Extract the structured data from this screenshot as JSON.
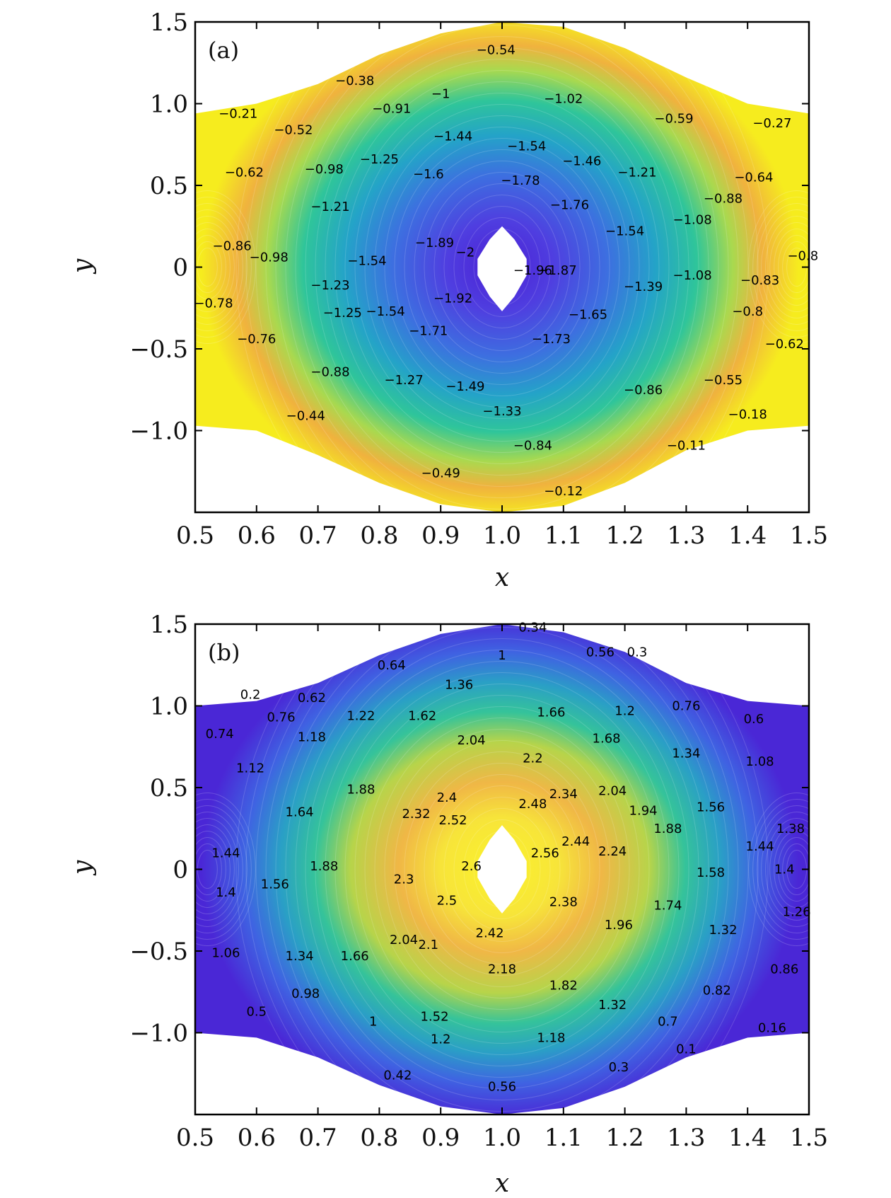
{
  "chart_data": [
    {
      "type": "contour",
      "panel_label": "(a)",
      "xlabel": "x",
      "ylabel": "y",
      "xlim": [
        0.5,
        1.5
      ],
      "ylim": [
        -1.5,
        1.5
      ],
      "xticks": [
        "0.5",
        "0.6",
        "0.7",
        "0.8",
        "0.9",
        "1.0",
        "1.1",
        "1.2",
        "1.3",
        "1.4",
        "1.5"
      ],
      "yticks": [
        "1.5",
        "1.0",
        "0.5",
        "0",
        "−0.5",
        "−1.0"
      ],
      "colormap": "viridis-like (purple center to yellow edge)",
      "domain_boundary": {
        "top": [
          [
            0.5,
            0.94
          ],
          [
            0.6,
            1.0
          ],
          [
            0.7,
            1.12
          ],
          [
            0.8,
            1.3
          ],
          [
            0.9,
            1.43
          ],
          [
            1.0,
            1.5
          ],
          [
            1.1,
            1.47
          ],
          [
            1.2,
            1.34
          ],
          [
            1.3,
            1.16
          ],
          [
            1.4,
            1.0
          ],
          [
            1.5,
            0.94
          ]
        ],
        "bottom": [
          [
            0.5,
            -0.97
          ],
          [
            0.6,
            -1.0
          ],
          [
            0.7,
            -1.15
          ],
          [
            0.8,
            -1.32
          ],
          [
            0.9,
            -1.45
          ],
          [
            1.0,
            -1.5
          ],
          [
            1.1,
            -1.46
          ],
          [
            1.2,
            -1.32
          ],
          [
            1.3,
            -1.12
          ],
          [
            1.4,
            -1.0
          ],
          [
            1.5,
            -0.97
          ]
        ]
      },
      "hole": [
        [
          1.0,
          0.25
        ],
        [
          1.02,
          0.17
        ],
        [
          1.04,
          0.05
        ],
        [
          1.04,
          -0.05
        ],
        [
          1.02,
          -0.18
        ],
        [
          1.0,
          -0.27
        ],
        [
          0.98,
          -0.18
        ],
        [
          0.96,
          -0.05
        ],
        [
          0.96,
          0.05
        ],
        [
          0.98,
          0.17
        ]
      ],
      "center_value": -2.0,
      "boundary_value": -0.12,
      "contour_labels": [
        {
          "text": "−0.54",
          "x": 0.99,
          "y": 1.33
        },
        {
          "text": "−0.38",
          "x": 0.76,
          "y": 1.14
        },
        {
          "text": "−0.21",
          "x": 0.57,
          "y": 0.94
        },
        {
          "text": "−0.52",
          "x": 0.66,
          "y": 0.84
        },
        {
          "text": "−0.91",
          "x": 0.82,
          "y": 0.97
        },
        {
          "text": "−1",
          "x": 0.9,
          "y": 1.06
        },
        {
          "text": "−1.02",
          "x": 1.1,
          "y": 1.03
        },
        {
          "text": "−0.59",
          "x": 1.28,
          "y": 0.91
        },
        {
          "text": "−0.27",
          "x": 1.44,
          "y": 0.88
        },
        {
          "text": "−1.44",
          "x": 0.92,
          "y": 0.8
        },
        {
          "text": "−1.54",
          "x": 1.04,
          "y": 0.74
        },
        {
          "text": "−1.46",
          "x": 1.13,
          "y": 0.65
        },
        {
          "text": "−1.21",
          "x": 1.22,
          "y": 0.58
        },
        {
          "text": "−0.62",
          "x": 0.58,
          "y": 0.58
        },
        {
          "text": "−0.98",
          "x": 0.71,
          "y": 0.6
        },
        {
          "text": "−1.25",
          "x": 0.8,
          "y": 0.66
        },
        {
          "text": "−1.6",
          "x": 0.88,
          "y": 0.57
        },
        {
          "text": "−1.78",
          "x": 1.03,
          "y": 0.53
        },
        {
          "text": "−0.64",
          "x": 1.41,
          "y": 0.55
        },
        {
          "text": "−1.76",
          "x": 1.11,
          "y": 0.38
        },
        {
          "text": "−0.88",
          "x": 1.36,
          "y": 0.42
        },
        {
          "text": "−1.08",
          "x": 1.31,
          "y": 0.29
        },
        {
          "text": "−1.21",
          "x": 0.72,
          "y": 0.37
        },
        {
          "text": "−1.54",
          "x": 1.2,
          "y": 0.22
        },
        {
          "text": "−0.86",
          "x": 0.56,
          "y": 0.13
        },
        {
          "text": "−0.98",
          "x": 0.62,
          "y": 0.06
        },
        {
          "text": "−1.54",
          "x": 0.78,
          "y": 0.04
        },
        {
          "text": "−1.89",
          "x": 0.89,
          "y": 0.15
        },
        {
          "text": "−2",
          "x": 0.94,
          "y": 0.09
        },
        {
          "text": "−1.96",
          "x": 1.05,
          "y": -0.02
        },
        {
          "text": "−1.87",
          "x": 1.09,
          "y": -0.02
        },
        {
          "text": "−1.39",
          "x": 1.23,
          "y": -0.12
        },
        {
          "text": "−1.08",
          "x": 1.31,
          "y": -0.05
        },
        {
          "text": "−0.8",
          "x": 1.49,
          "y": 0.07
        },
        {
          "text": "−0.83",
          "x": 1.42,
          "y": -0.08
        },
        {
          "text": "−1.23",
          "x": 0.72,
          "y": -0.11
        },
        {
          "text": "−1.25",
          "x": 0.74,
          "y": -0.28
        },
        {
          "text": "−1.92",
          "x": 0.92,
          "y": -0.19
        },
        {
          "text": "−0.78",
          "x": 0.53,
          "y": -0.22
        },
        {
          "text": "−0.8",
          "x": 1.4,
          "y": -0.27
        },
        {
          "text": "−1.54",
          "x": 0.81,
          "y": -0.27
        },
        {
          "text": "−1.65",
          "x": 1.14,
          "y": -0.29
        },
        {
          "text": "−0.76",
          "x": 0.6,
          "y": -0.44
        },
        {
          "text": "−1.71",
          "x": 0.88,
          "y": -0.39
        },
        {
          "text": "−1.73",
          "x": 1.08,
          "y": -0.44
        },
        {
          "text": "−0.62",
          "x": 1.46,
          "y": -0.47
        },
        {
          "text": "−0.88",
          "x": 0.72,
          "y": -0.64
        },
        {
          "text": "−1.27",
          "x": 0.84,
          "y": -0.69
        },
        {
          "text": "−1.49",
          "x": 0.94,
          "y": -0.73
        },
        {
          "text": "−0.86",
          "x": 1.23,
          "y": -0.75
        },
        {
          "text": "−0.55",
          "x": 1.36,
          "y": -0.69
        },
        {
          "text": "−1.33",
          "x": 1.0,
          "y": -0.88
        },
        {
          "text": "−0.44",
          "x": 0.68,
          "y": -0.91
        },
        {
          "text": "−0.18",
          "x": 1.4,
          "y": -0.9
        },
        {
          "text": "−0.84",
          "x": 1.05,
          "y": -1.09
        },
        {
          "text": "−0.11",
          "x": 1.3,
          "y": -1.09
        },
        {
          "text": "−0.49",
          "x": 0.9,
          "y": -1.26
        },
        {
          "text": "−0.12",
          "x": 1.1,
          "y": -1.37
        }
      ]
    },
    {
      "type": "contour",
      "panel_label": "(b)",
      "xlabel": "x",
      "ylabel": "y",
      "xlim": [
        0.5,
        1.5
      ],
      "ylim": [
        -1.5,
        1.5
      ],
      "xticks": [
        "0.5",
        "0.6",
        "0.7",
        "0.8",
        "0.9",
        "1.0",
        "1.1",
        "1.2",
        "1.3",
        "1.4",
        "1.5"
      ],
      "yticks": [
        "1.5",
        "1.0",
        "0.5",
        "0",
        "−0.5",
        "−1.0"
      ],
      "colormap": "viridis-like (yellow center to purple edge)",
      "domain_boundary": {
        "top": [
          [
            0.5,
            1.0
          ],
          [
            0.6,
            1.03
          ],
          [
            0.7,
            1.14
          ],
          [
            0.8,
            1.31
          ],
          [
            0.9,
            1.44
          ],
          [
            1.0,
            1.5
          ],
          [
            1.1,
            1.45
          ],
          [
            1.2,
            1.33
          ],
          [
            1.3,
            1.14
          ],
          [
            1.4,
            1.03
          ],
          [
            1.5,
            1.0
          ]
        ],
        "bottom": [
          [
            0.5,
            -1.0
          ],
          [
            0.6,
            -1.03
          ],
          [
            0.7,
            -1.15
          ],
          [
            0.8,
            -1.32
          ],
          [
            0.9,
            -1.45
          ],
          [
            1.0,
            -1.5
          ],
          [
            1.1,
            -1.46
          ],
          [
            1.2,
            -1.33
          ],
          [
            1.3,
            -1.15
          ],
          [
            1.4,
            -1.03
          ],
          [
            1.5,
            -1.0
          ]
        ]
      },
      "hole": [
        [
          1.0,
          0.27
        ],
        [
          1.02,
          0.18
        ],
        [
          1.04,
          0.05
        ],
        [
          1.04,
          -0.05
        ],
        [
          1.02,
          -0.18
        ],
        [
          1.0,
          -0.27
        ],
        [
          0.98,
          -0.18
        ],
        [
          0.96,
          -0.05
        ],
        [
          0.96,
          0.05
        ],
        [
          0.98,
          0.18
        ]
      ],
      "center_value": 2.6,
      "boundary_value": 0.1,
      "contour_labels": [
        {
          "text": "0.34",
          "x": 1.05,
          "y": 1.48
        },
        {
          "text": "0.56",
          "x": 1.16,
          "y": 1.33
        },
        {
          "text": "0.3",
          "x": 1.22,
          "y": 1.33
        },
        {
          "text": "1",
          "x": 1.0,
          "y": 1.31
        },
        {
          "text": "0.64",
          "x": 0.82,
          "y": 1.25
        },
        {
          "text": "1.36",
          "x": 0.93,
          "y": 1.13
        },
        {
          "text": "0.2",
          "x": 0.59,
          "y": 1.07
        },
        {
          "text": "0.62",
          "x": 0.69,
          "y": 1.05
        },
        {
          "text": "0.76",
          "x": 1.3,
          "y": 1.0
        },
        {
          "text": "1.2",
          "x": 1.2,
          "y": 0.97
        },
        {
          "text": "1.66",
          "x": 1.08,
          "y": 0.96
        },
        {
          "text": "0.76",
          "x": 0.64,
          "y": 0.93
        },
        {
          "text": "1.22",
          "x": 0.77,
          "y": 0.94
        },
        {
          "text": "1.62",
          "x": 0.87,
          "y": 0.94
        },
        {
          "text": "0.6",
          "x": 1.41,
          "y": 0.92
        },
        {
          "text": "0.74",
          "x": 0.54,
          "y": 0.83
        },
        {
          "text": "1.18",
          "x": 0.69,
          "y": 0.81
        },
        {
          "text": "1.68",
          "x": 1.17,
          "y": 0.8
        },
        {
          "text": "2.04",
          "x": 0.95,
          "y": 0.79
        },
        {
          "text": "2.2",
          "x": 1.05,
          "y": 0.68
        },
        {
          "text": "1.34",
          "x": 1.3,
          "y": 0.71
        },
        {
          "text": "1.08",
          "x": 1.42,
          "y": 0.66
        },
        {
          "text": "1.12",
          "x": 0.59,
          "y": 0.62
        },
        {
          "text": "1.88",
          "x": 0.77,
          "y": 0.49
        },
        {
          "text": "2.34",
          "x": 1.1,
          "y": 0.46
        },
        {
          "text": "2.04",
          "x": 1.18,
          "y": 0.48
        },
        {
          "text": "2.4",
          "x": 0.91,
          "y": 0.44
        },
        {
          "text": "2.48",
          "x": 1.05,
          "y": 0.4
        },
        {
          "text": "1.94",
          "x": 1.23,
          "y": 0.36
        },
        {
          "text": "1.88",
          "x": 1.27,
          "y": 0.25
        },
        {
          "text": "1.56",
          "x": 1.34,
          "y": 0.38
        },
        {
          "text": "2.32",
          "x": 0.86,
          "y": 0.34
        },
        {
          "text": "2.52",
          "x": 0.92,
          "y": 0.3
        },
        {
          "text": "1.64",
          "x": 0.67,
          "y": 0.35
        },
        {
          "text": "1.38",
          "x": 1.47,
          "y": 0.25
        },
        {
          "text": "2.44",
          "x": 1.12,
          "y": 0.17
        },
        {
          "text": "1.44",
          "x": 1.42,
          "y": 0.14
        },
        {
          "text": "1.44",
          "x": 0.55,
          "y": 0.1
        },
        {
          "text": "2.56",
          "x": 1.07,
          "y": 0.1
        },
        {
          "text": "2.24",
          "x": 1.18,
          "y": 0.11
        },
        {
          "text": "1.4",
          "x": 1.46,
          "y": 0.0
        },
        {
          "text": "1.88",
          "x": 0.71,
          "y": 0.02
        },
        {
          "text": "2.6",
          "x": 0.95,
          "y": 0.02
        },
        {
          "text": "1.58",
          "x": 1.34,
          "y": -0.02
        },
        {
          "text": "2.3",
          "x": 0.84,
          "y": -0.06
        },
        {
          "text": "1.56",
          "x": 0.63,
          "y": -0.09
        },
        {
          "text": "1.4",
          "x": 0.55,
          "y": -0.14
        },
        {
          "text": "2.5",
          "x": 0.91,
          "y": -0.19
        },
        {
          "text": "2.38",
          "x": 1.1,
          "y": -0.2
        },
        {
          "text": "1.74",
          "x": 1.27,
          "y": -0.22
        },
        {
          "text": "1.26",
          "x": 1.48,
          "y": -0.26
        },
        {
          "text": "1.96",
          "x": 1.19,
          "y": -0.34
        },
        {
          "text": "2.42",
          "x": 0.98,
          "y": -0.39
        },
        {
          "text": "1.32",
          "x": 1.36,
          "y": -0.37
        },
        {
          "text": "2.04",
          "x": 0.84,
          "y": -0.43
        },
        {
          "text": "2.1",
          "x": 0.88,
          "y": -0.46
        },
        {
          "text": "1.06",
          "x": 0.55,
          "y": -0.51
        },
        {
          "text": "1.34",
          "x": 0.67,
          "y": -0.53
        },
        {
          "text": "1.66",
          "x": 0.76,
          "y": -0.53
        },
        {
          "text": "2.18",
          "x": 1.0,
          "y": -0.61
        },
        {
          "text": "0.86",
          "x": 1.46,
          "y": -0.61
        },
        {
          "text": "1.82",
          "x": 1.1,
          "y": -0.71
        },
        {
          "text": "0.82",
          "x": 1.35,
          "y": -0.74
        },
        {
          "text": "0.98",
          "x": 0.68,
          "y": -0.76
        },
        {
          "text": "1.32",
          "x": 1.18,
          "y": -0.83
        },
        {
          "text": "0.5",
          "x": 0.6,
          "y": -0.87
        },
        {
          "text": "1.52",
          "x": 0.89,
          "y": -0.9
        },
        {
          "text": "1",
          "x": 0.79,
          "y": -0.93
        },
        {
          "text": "0.7",
          "x": 1.27,
          "y": -0.93
        },
        {
          "text": "0.16",
          "x": 1.44,
          "y": -0.97
        },
        {
          "text": "1.2",
          "x": 0.9,
          "y": -1.04
        },
        {
          "text": "1.18",
          "x": 1.08,
          "y": -1.03
        },
        {
          "text": "0.1",
          "x": 1.3,
          "y": -1.1
        },
        {
          "text": "0.3",
          "x": 1.19,
          "y": -1.21
        },
        {
          "text": "0.42",
          "x": 0.83,
          "y": -1.26
        },
        {
          "text": "0.56",
          "x": 1.0,
          "y": -1.33
        }
      ]
    }
  ]
}
